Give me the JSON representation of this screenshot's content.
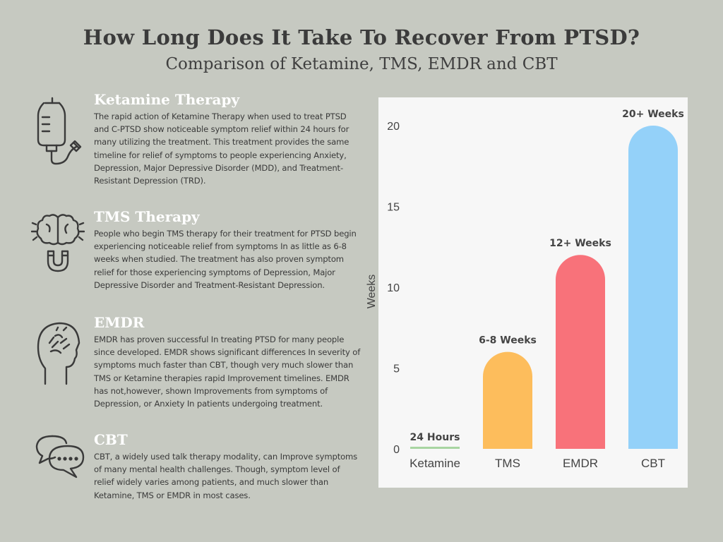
{
  "header": {
    "title": "How Long Does It Take To Recover From PTSD?",
    "subtitle": "Comparison of Ketamine, TMS, EMDR and CBT"
  },
  "sections": [
    {
      "heading": "Ketamine Therapy",
      "icon": "iv-drip-icon",
      "body": "The rapid action of Ketamine Therapy when used to treat PTSD and C-PTSD show noticeable symptom relief within 24 hours for many utilizing the treatment. This treatment provides the same timeline for relief of symptoms to people experiencing Anxiety, Depression, Major Depressive Disorder (MDD), and Treatment-Resistant Depression (TRD)."
    },
    {
      "heading": "TMS Therapy",
      "icon": "brain-magnet-icon",
      "body": "People who begin TMS therapy for their treatment for PTSD begin experiencing noticeable relief from symptoms  In as little as 6-8 weeks when studied. The treatment has also proven symptom relief for those experiencing symptoms of Depression, Major Depressive Disorder and Treatment-Resistant Depression."
    },
    {
      "heading": "EMDR",
      "icon": "head-stress-icon",
      "body": "EMDR has proven successful In treating PTSD for many people since developed. EMDR shows significant differences In severity of symptoms much faster than CBT, though very much slower than TMS or Ketamine therapies rapid Improvement timelines. EMDR has not,however, shown Improvements from symptoms of Depression, or Anxiety In patients undergoing treatment."
    },
    {
      "heading": "CBT",
      "icon": "speech-bubbles-icon",
      "body": "CBT, a widely used talk therapy modality, can Improve symptoms of many mental health challenges. Though, symptom level of relief widely varies among patients, and much slower than Ketamine, TMS or EMDR in most cases."
    }
  ],
  "chart_data": {
    "type": "bar",
    "categories": [
      "Ketamine",
      "TMS",
      "EMDR",
      "CBT"
    ],
    "values": [
      0.14,
      6,
      12,
      20
    ],
    "data_labels": [
      "24 Hours",
      "6-8 Weeks",
      "12+ Weeks",
      "20+ Weeks"
    ],
    "colors": [
      "#a8d5a2",
      "#fdbd5c",
      "#f8727a",
      "#94d1f9"
    ],
    "xlabel": "",
    "ylabel": "Weeks",
    "ylim": [
      0,
      21
    ],
    "yticks": [
      0,
      5,
      10,
      15,
      20
    ],
    "grid": false
  }
}
